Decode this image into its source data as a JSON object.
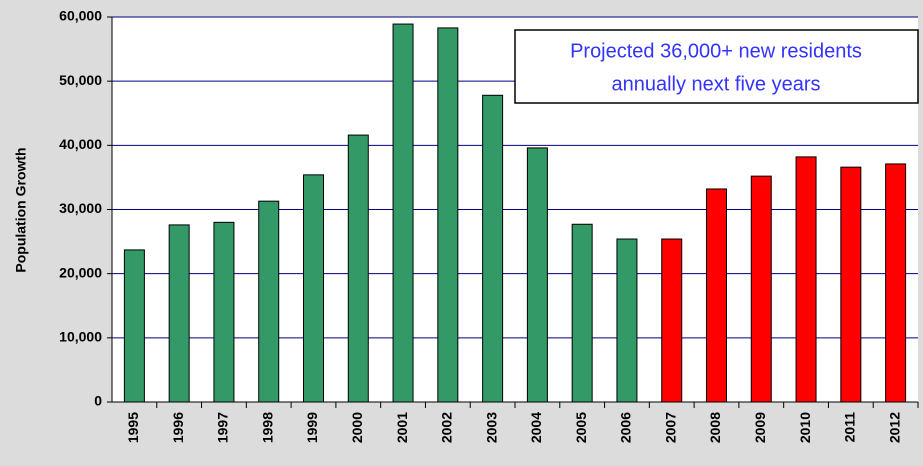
{
  "chart_data": {
    "type": "bar",
    "y_label": "Population Growth",
    "annotation": [
      "Projected 36,000+ new residents",
      "annually next five years"
    ],
    "categories": [
      "1995",
      "1996",
      "1997",
      "1998",
      "1999",
      "2000",
      "2001",
      "2002",
      "2003",
      "2004",
      "2005",
      "2006",
      "2007",
      "2008",
      "2009",
      "2010",
      "2011",
      "2012"
    ],
    "values": [
      23700,
      27600,
      28000,
      31300,
      35400,
      41600,
      58900,
      58300,
      47800,
      39600,
      27700,
      25400,
      25400,
      33200,
      35200,
      38200,
      36600,
      37100
    ],
    "colors": [
      "#339966",
      "#339966",
      "#339966",
      "#339966",
      "#339966",
      "#339966",
      "#339966",
      "#339966",
      "#339966",
      "#339966",
      "#339966",
      "#339966",
      "#ff0000",
      "#ff0000",
      "#ff0000",
      "#ff0000",
      "#ff0000",
      "#ff0000"
    ],
    "ylim": [
      0,
      60000
    ],
    "yticks": [
      0,
      {
        "value": 10000,
        "label": "10,000"
      },
      {
        "value": 20000,
        "label": "20,000"
      },
      {
        "value": 30000,
        "label": "30,000"
      },
      {
        "value": 40000,
        "label": "40,000"
      },
      {
        "value": 50000,
        "label": "50,000"
      },
      {
        "value": 60000,
        "label": "60,000"
      }
    ],
    "grid": true
  }
}
